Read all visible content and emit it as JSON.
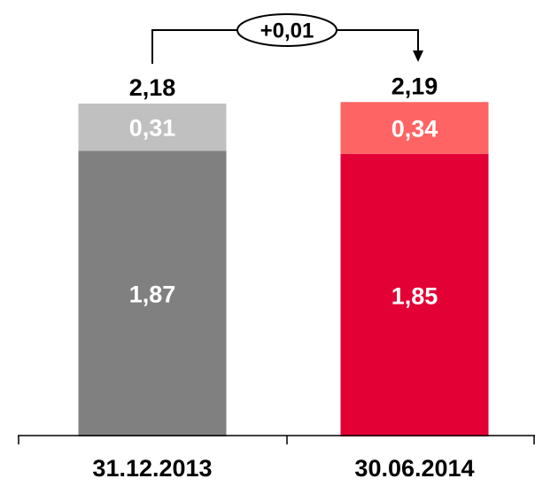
{
  "chart_data": {
    "type": "bar",
    "stacked": true,
    "categories": [
      "31.12.2013",
      "30.06.2014"
    ],
    "series": [
      {
        "values": [
          1.87,
          1.85
        ],
        "labels": [
          "1,87",
          "1,85"
        ],
        "colors": [
          "#808080",
          "#e30034"
        ]
      },
      {
        "values": [
          0.31,
          0.34
        ],
        "labels": [
          "0,31",
          "0,34"
        ],
        "colors": [
          "#c0c0c0",
          "#ff6464"
        ]
      }
    ],
    "totals": [
      2.18,
      2.19
    ],
    "total_labels": [
      "2,18",
      "2,19"
    ],
    "change": {
      "value": 0.01,
      "label": "+0,01",
      "from": "31.12.2013",
      "to": "30.06.2014"
    },
    "ylim": [
      0,
      2.18
    ],
    "grid": false,
    "legend": "none"
  }
}
